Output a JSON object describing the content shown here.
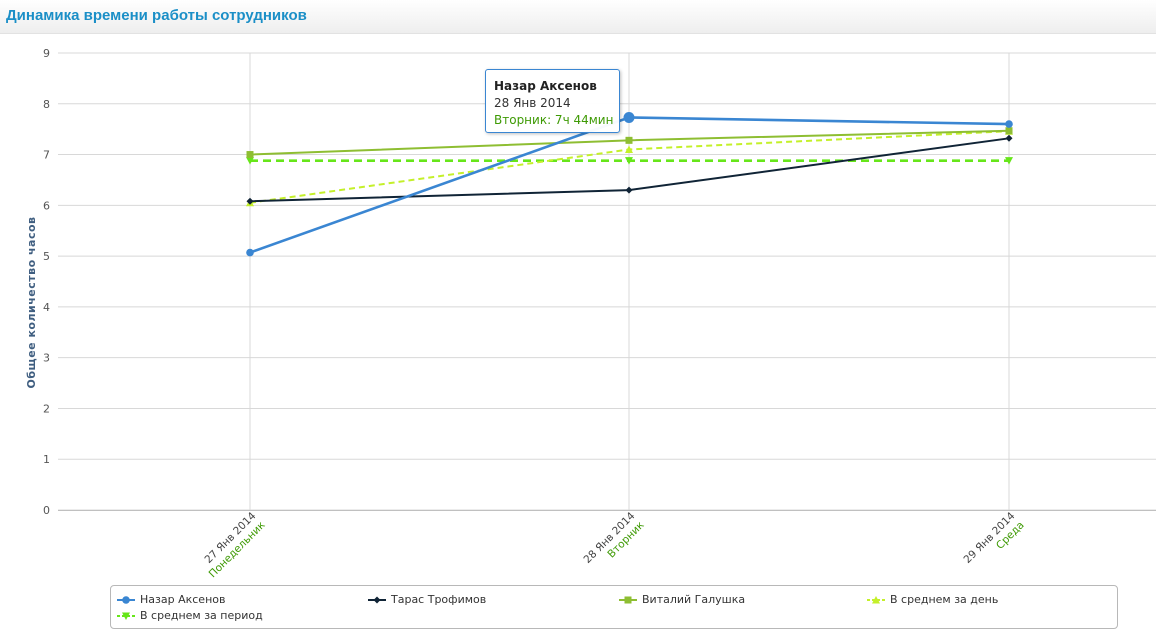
{
  "header": {
    "title": "Динамика времени работы сотрудников"
  },
  "chart_data": {
    "type": "line",
    "title": "Динамика времени работы сотрудников",
    "xlabel": "",
    "ylabel": "Общее количество часов",
    "ylim": [
      0,
      9
    ],
    "yticks": [
      0,
      1,
      2,
      3,
      4,
      5,
      6,
      7,
      8,
      9
    ],
    "grid": true,
    "legend_position": "bottom",
    "categories": [
      {
        "date": "27 Янв 2014",
        "day": "Понедельник"
      },
      {
        "date": "28 Янв 2014",
        "day": "Вторник"
      },
      {
        "date": "29 Янв 2014",
        "day": "Среда"
      }
    ],
    "series": [
      {
        "name": "Назар Аксенов",
        "color": "#3a86d2",
        "marker": "circle",
        "dash": false,
        "values": [
          5.07,
          7.73,
          7.6
        ]
      },
      {
        "name": "Тарас Трофимов",
        "color": "#102436",
        "marker": "diamond",
        "dash": false,
        "values": [
          6.08,
          6.3,
          7.32
        ]
      },
      {
        "name": "Виталий Галушка",
        "color": "#8ebe32",
        "marker": "square",
        "dash": false,
        "values": [
          7.0,
          7.28,
          7.47
        ]
      },
      {
        "name": "В среднем за день",
        "color": "#c4f02a",
        "marker": "triangle",
        "dash": true,
        "values": [
          6.05,
          7.1,
          7.46
        ]
      },
      {
        "name": "В среднем за период",
        "color": "#67e61a",
        "marker": "triangle-down",
        "dash": true,
        "values": [
          6.88,
          6.88,
          6.88
        ]
      }
    ],
    "tooltip": {
      "title": "Назар Аксенов",
      "date": "28 Янв 2014",
      "value": "Вторник: 7ч 44мин"
    }
  }
}
